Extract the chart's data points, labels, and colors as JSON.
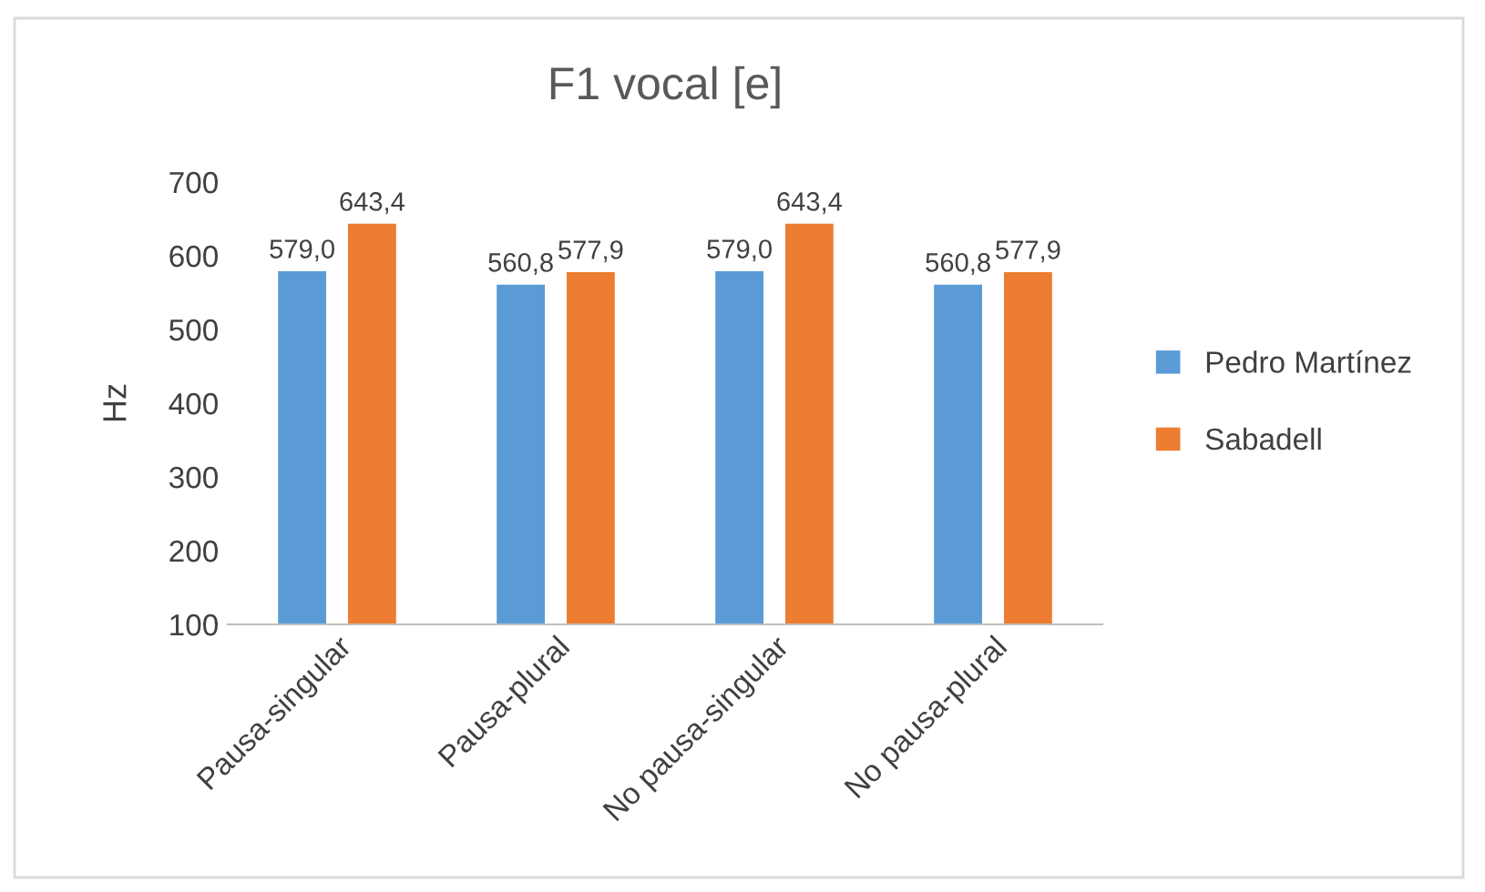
{
  "chart_data": {
    "type": "bar",
    "title": "F1 vocal [e]",
    "ylabel": "Hz",
    "categories": [
      "Pausa-singular",
      "Pausa-plural",
      "No pausa-singular",
      "No pausa-plural"
    ],
    "series": [
      {
        "name": "Pedro Martínez",
        "color": "#5b9bd5",
        "values": [
          579.0,
          560.8,
          579.0,
          560.8
        ],
        "value_labels": [
          "579,0",
          "560,8",
          "579,0",
          "560,8"
        ]
      },
      {
        "name": "Sabadell",
        "color": "#ed7d31",
        "values": [
          643.4,
          577.9,
          643.4,
          577.9
        ],
        "value_labels": [
          "643,4",
          "577,9",
          "643,4",
          "577,9"
        ]
      }
    ],
    "ylim": [
      100,
      700
    ],
    "yticks": [
      100,
      200,
      300,
      400,
      500,
      600,
      700
    ],
    "grid": false,
    "legend": "right"
  }
}
